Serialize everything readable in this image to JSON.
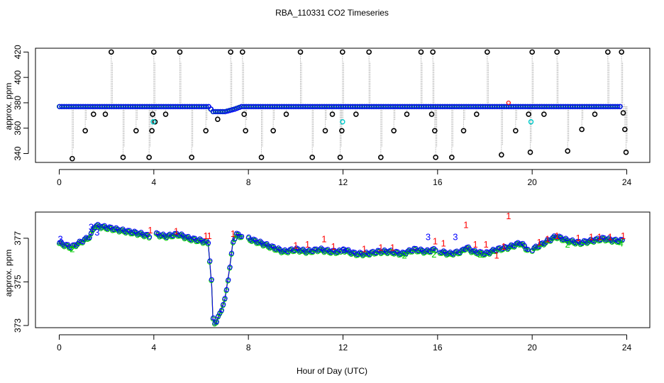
{
  "title": "RBA_110331  CO2 Timeseries",
  "xlabel": "Hour of Day (UTC)",
  "colors": {
    "black": "#000000",
    "red": "#ff0000",
    "blue": "#0000ff",
    "green": "#00cc00",
    "cyan": "#00cccc",
    "grey": "#9a9a9a"
  },
  "chart_data": [
    {
      "type": "scatter",
      "panel": "top",
      "ylabel": "approx. ppm",
      "xlim": [
        0,
        24
      ],
      "ylim": [
        333,
        423
      ],
      "xticks": [
        "0",
        "4",
        "8",
        "12",
        "16",
        "20",
        "24"
      ],
      "yticks": [
        "340",
        "360",
        "380",
        "400",
        "420"
      ],
      "baseline_segments": [
        {
          "x": [
            0,
            6.3
          ],
          "y": [
            377,
            377
          ]
        },
        {
          "x": [
            6.3,
            6.5,
            7.0,
            7.4,
            7.7
          ],
          "y": [
            377,
            373,
            373,
            375,
            377
          ]
        },
        {
          "x": [
            7.7,
            24
          ],
          "y": [
            377,
            377
          ]
        }
      ],
      "calibration_spikes": {
        "x": [
          0.55,
          1.1,
          1.45,
          1.95,
          2.2,
          2.7,
          3.25,
          3.8,
          3.92,
          3.95,
          4.0,
          4.5,
          4.05,
          5.1,
          5.6,
          6.2,
          6.7,
          7.25,
          7.75,
          7.82,
          7.88,
          8.55,
          9.05,
          9.6,
          10.2,
          10.7,
          11.25,
          11.55,
          11.88,
          11.95,
          11.98,
          12.55,
          13.1,
          13.6,
          14.15,
          14.7,
          15.3,
          15.75,
          15.8,
          15.88,
          15.92,
          16.6,
          17.1,
          17.65,
          18.1,
          18.7,
          19.3,
          19.85,
          19.92,
          20.0,
          20.5,
          21.05,
          21.5,
          22.1,
          22.65,
          23.2,
          23.78,
          23.85,
          23.92,
          23.97
        ],
        "y": [
          336,
          358,
          371,
          371,
          420,
          337,
          358,
          337,
          358,
          371,
          420,
          371,
          365,
          420,
          337,
          358,
          367,
          420,
          420,
          371,
          358,
          337,
          358,
          371,
          420,
          337,
          358,
          371,
          337,
          358,
          420,
          371,
          420,
          337,
          358,
          371,
          420,
          371,
          420,
          358,
          337,
          337,
          358,
          371,
          420,
          339,
          358,
          371,
          341,
          420,
          371,
          420,
          342,
          359,
          371,
          420,
          420,
          372,
          359,
          341
        ]
      },
      "cyan_points": {
        "x": [
          3.98,
          11.98,
          19.95
        ],
        "y": [
          365,
          365,
          365
        ]
      },
      "red_points": {
        "x": [
          19.0
        ],
        "y": [
          380
        ]
      }
    },
    {
      "type": "line",
      "panel": "bottom",
      "ylabel": "approx. ppm",
      "xlim": [
        0,
        24
      ],
      "ylim": [
        372.9,
        378.2
      ],
      "xticks": [
        "0",
        "4",
        "8",
        "12",
        "16",
        "20",
        "24"
      ],
      "yticks": [
        "373",
        "375",
        "377"
      ],
      "segments": [
        {
          "x": [
            0,
            0.5,
            1.0,
            1.3,
            1.5,
            2.0,
            2.5,
            3.0,
            3.5,
            3.8
          ],
          "y": [
            376.8,
            376.6,
            376.9,
            377.1,
            377.6,
            377.5,
            377.4,
            377.3,
            377.2,
            377.1
          ]
        },
        {
          "x": [
            4.1,
            4.5,
            5.0,
            5.5,
            6.0,
            6.3,
            6.45,
            6.5,
            6.6,
            6.8,
            7.0,
            7.2,
            7.35,
            7.5,
            7.7
          ],
          "y": [
            377.2,
            377.1,
            377.2,
            377.0,
            376.9,
            376.8,
            374.8,
            373.3,
            373.1,
            373.6,
            374.2,
            375.6,
            376.9,
            377.2,
            377.1
          ]
        },
        {
          "x": [
            8.0,
            8.5,
            9.0,
            9.5,
            10.0,
            10.5,
            11.0,
            11.5,
            11.9
          ],
          "y": [
            377.0,
            376.8,
            376.6,
            376.4,
            376.5,
            376.4,
            376.5,
            376.4,
            376.4
          ]
        },
        {
          "x": [
            12.0,
            12.5,
            13.0,
            13.5,
            14.0,
            14.5,
            15.0,
            15.5,
            15.9
          ],
          "y": [
            376.5,
            376.3,
            376.3,
            376.4,
            376.4,
            376.3,
            376.5,
            376.4,
            376.5
          ]
        },
        {
          "x": [
            16.1,
            16.5,
            17.0,
            17.2,
            17.5,
            18.0,
            18.5,
            19.0,
            19.5,
            19.8
          ],
          "y": [
            376.4,
            376.3,
            376.4,
            376.6,
            376.4,
            376.3,
            376.5,
            376.6,
            376.8,
            376.5
          ]
        },
        {
          "x": [
            20.0,
            20.5,
            21.0,
            21.5,
            22.0,
            22.5,
            23.0,
            23.5,
            23.8
          ],
          "y": [
            376.5,
            376.8,
            377.1,
            376.9,
            376.8,
            376.9,
            377.0,
            376.9,
            376.9
          ]
        }
      ],
      "labels": [
        {
          "text": "3",
          "x": 0.05,
          "y": 376.95,
          "color": "blue"
        },
        {
          "text": "2",
          "x": 0.55,
          "y": 376.5,
          "color": "green"
        },
        {
          "text": "3",
          "x": 1.35,
          "y": 377.5,
          "color": "blue"
        },
        {
          "text": "3",
          "x": 1.6,
          "y": 377.25,
          "color": "blue"
        },
        {
          "text": "1",
          "x": 3.85,
          "y": 377.35,
          "color": "red"
        },
        {
          "text": "1",
          "x": 4.95,
          "y": 377.3,
          "color": "red"
        },
        {
          "text": "1",
          "x": 6.2,
          "y": 377.1,
          "color": "red"
        },
        {
          "text": "1",
          "x": 6.35,
          "y": 377.1,
          "color": "red"
        },
        {
          "text": "1",
          "x": 7.35,
          "y": 377.2,
          "color": "red"
        },
        {
          "text": "1",
          "x": 10.0,
          "y": 376.65,
          "color": "red"
        },
        {
          "text": "1",
          "x": 10.5,
          "y": 376.7,
          "color": "red"
        },
        {
          "text": "1",
          "x": 11.2,
          "y": 376.95,
          "color": "red"
        },
        {
          "text": "1",
          "x": 11.6,
          "y": 376.6,
          "color": "red"
        },
        {
          "text": "3",
          "x": 12.05,
          "y": 376.45,
          "color": "blue"
        },
        {
          "text": "1",
          "x": 12.9,
          "y": 376.5,
          "color": "red"
        },
        {
          "text": "1",
          "x": 13.6,
          "y": 376.55,
          "color": "red"
        },
        {
          "text": "1",
          "x": 14.1,
          "y": 376.55,
          "color": "red"
        },
        {
          "text": "2",
          "x": 14.6,
          "y": 376.2,
          "color": "green"
        },
        {
          "text": "3",
          "x": 15.6,
          "y": 377.05,
          "color": "blue"
        },
        {
          "text": "1",
          "x": 15.9,
          "y": 376.85,
          "color": "red"
        },
        {
          "text": "2",
          "x": 15.85,
          "y": 376.25,
          "color": "green"
        },
        {
          "text": "1",
          "x": 16.25,
          "y": 376.75,
          "color": "red"
        },
        {
          "text": "3",
          "x": 16.75,
          "y": 377.05,
          "color": "blue"
        },
        {
          "text": "1",
          "x": 17.2,
          "y": 377.6,
          "color": "red"
        },
        {
          "text": "1",
          "x": 17.6,
          "y": 376.7,
          "color": "red"
        },
        {
          "text": "2",
          "x": 17.8,
          "y": 376.25,
          "color": "green"
        },
        {
          "text": "1",
          "x": 18.05,
          "y": 376.7,
          "color": "red"
        },
        {
          "text": "1",
          "x": 18.5,
          "y": 376.2,
          "color": "red"
        },
        {
          "text": "1",
          "x": 18.8,
          "y": 376.6,
          "color": "red"
        },
        {
          "text": "1",
          "x": 19.0,
          "y": 378.0,
          "color": "red"
        },
        {
          "text": "1",
          "x": 20.3,
          "y": 376.8,
          "color": "red"
        },
        {
          "text": "1",
          "x": 20.65,
          "y": 376.95,
          "color": "red"
        },
        {
          "text": "1",
          "x": 21.05,
          "y": 377.1,
          "color": "red"
        },
        {
          "text": "2",
          "x": 21.5,
          "y": 376.7,
          "color": "green"
        },
        {
          "text": "1",
          "x": 21.95,
          "y": 377.0,
          "color": "red"
        },
        {
          "text": "1",
          "x": 22.5,
          "y": 377.05,
          "color": "red"
        },
        {
          "text": "1",
          "x": 22.85,
          "y": 377.05,
          "color": "red"
        },
        {
          "text": "1",
          "x": 23.3,
          "y": 377.05,
          "color": "red"
        },
        {
          "text": "1",
          "x": 23.85,
          "y": 377.1,
          "color": "red"
        },
        {
          "text": "4",
          "x": 23.75,
          "y": 376.75,
          "color": "green"
        }
      ]
    }
  ]
}
